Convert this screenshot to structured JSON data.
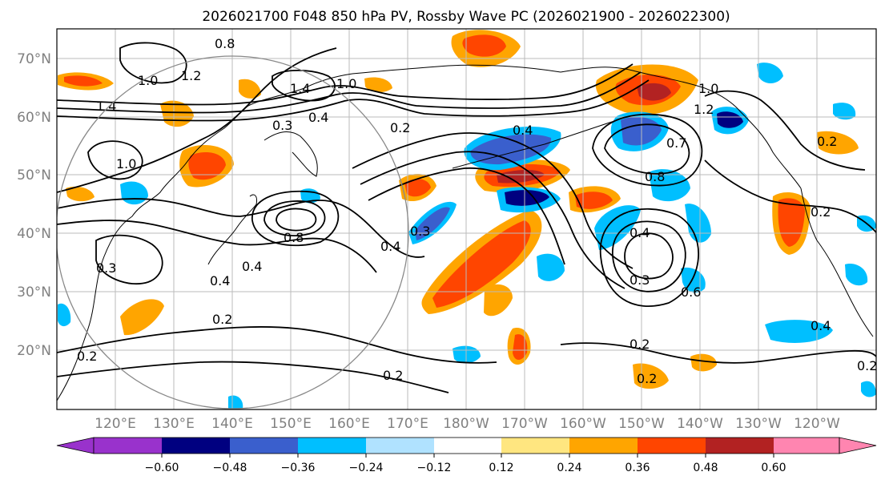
{
  "title": "2026021700 F048 850 hPa PV, Rossby Wave PC (2026021900 - 2026022300)",
  "map": {
    "lat_ticks": [
      "70°N",
      "60°N",
      "50°N",
      "40°N",
      "30°N",
      "20°N"
    ],
    "lon_ticks": [
      "120°E",
      "130°E",
      "140°E",
      "150°E",
      "160°E",
      "170°E",
      "180°W",
      "170°W",
      "160°W",
      "150°W",
      "140°W",
      "130°W",
      "120°W"
    ],
    "contour_labels": [
      "0.8",
      "1.2",
      "1.0",
      "1.4",
      "1.4",
      "1.0",
      "0.3",
      "0.4",
      "0.2",
      "0.4",
      "1.0",
      "0.8",
      "0.4",
      "0.4",
      "0.3",
      "0.3",
      "0.4",
      "0.2",
      "0.2",
      "0.2",
      "0.2",
      "0.8",
      "0.4",
      "0.3",
      "1.0",
      "1.2",
      "0.7",
      "0.2",
      "0.4",
      "0.2",
      "0.2",
      "0.6",
      "0.2"
    ]
  },
  "colorbar": {
    "ticks": [
      "−0.60",
      "−0.48",
      "−0.36",
      "−0.24",
      "−0.12",
      "0.12",
      "0.24",
      "0.36",
      "0.48",
      "0.60"
    ],
    "colors": [
      "#9932cc",
      "#000080",
      "#3a5fcd",
      "#00bfff",
      "#b0e2ff",
      "#ffffff",
      "#ffe680",
      "#ffa500",
      "#ff4500",
      "#b22222",
      "#ff85b0"
    ]
  }
}
